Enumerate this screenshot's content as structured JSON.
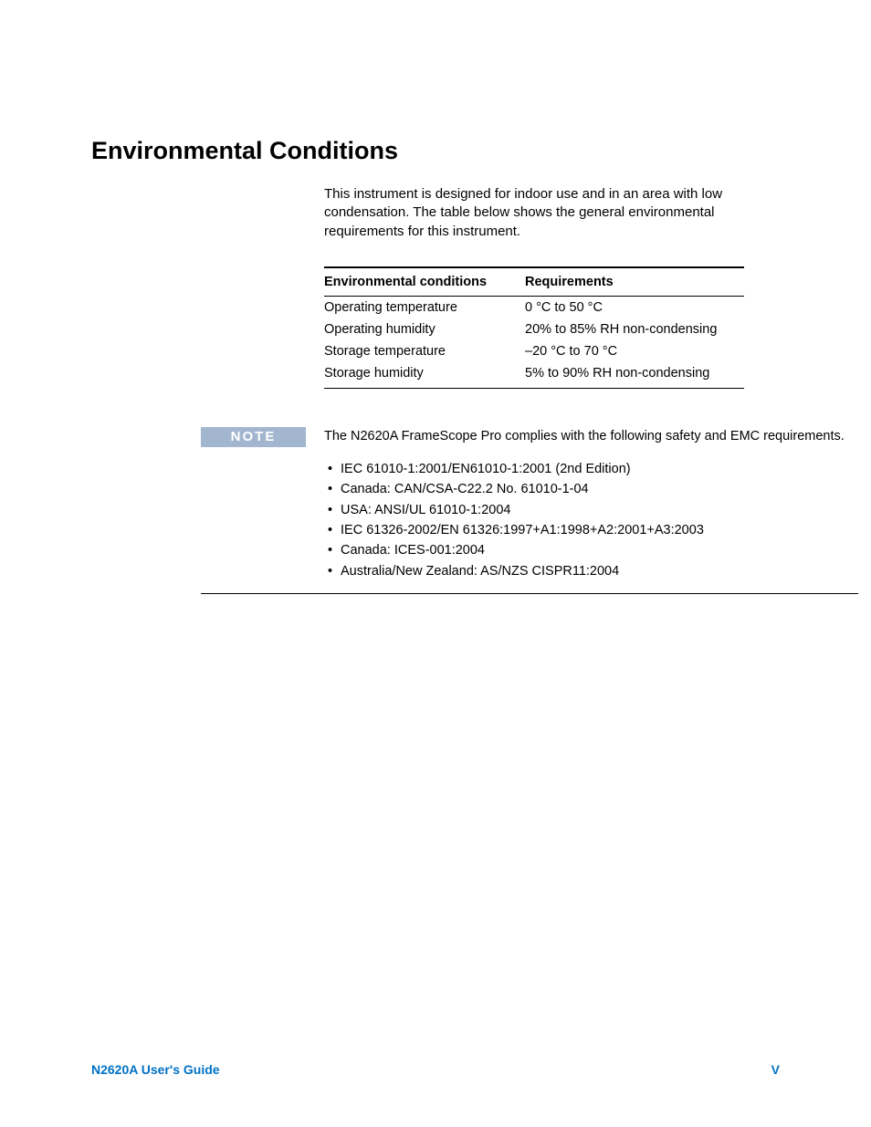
{
  "section_title": "Environmental Conditions",
  "intro_text": "This instrument is designed for indoor use and in an area with low condensation. The table below shows the general environmental requirements for this instrument.",
  "table": {
    "header_col1": "Environmental conditions",
    "header_col2": "Requirements",
    "rows": [
      {
        "cond": "Operating temperature",
        "req": "0 °C to 50 °C"
      },
      {
        "cond": "Operating humidity",
        "req": "20% to 85% RH non-condensing"
      },
      {
        "cond": "Storage temperature",
        "req": "–20 °C to 70 °C"
      },
      {
        "cond": "Storage humidity",
        "req": "5% to 90% RH non-condensing"
      }
    ]
  },
  "note": {
    "badge": "NOTE",
    "text": "The N2620A FrameScope Pro complies with the following safety and EMC requirements.",
    "items": [
      "IEC 61010-1:2001/EN61010-1:2001 (2nd Edition)",
      "Canada: CAN/CSA-C22.2 No. 61010-1-04",
      "USA: ANSI/UL 61010-1:2004",
      "IEC 61326-2002/EN 61326:1997+A1:1998+A2:2001+A3:2003",
      "Canada: ICES-001:2004",
      "Australia/New Zealand: AS/NZS CISPR11:2004"
    ]
  },
  "footer": {
    "left": "N2620A User's Guide",
    "right": "V"
  },
  "colors": {
    "note_badge_bg": "#a3b6cf",
    "note_badge_fg": "#ffffff",
    "footer_accent": "#0071c5",
    "text": "#000000",
    "background": "#ffffff"
  }
}
